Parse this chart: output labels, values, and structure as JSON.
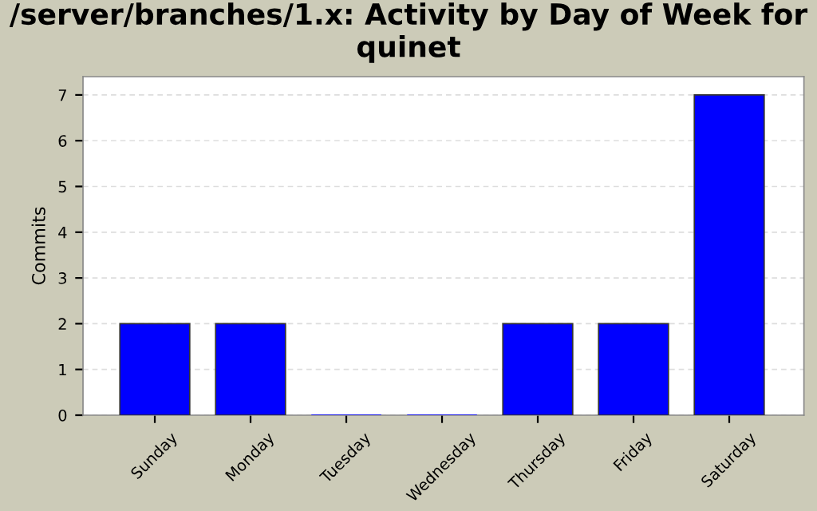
{
  "chart_data": {
    "type": "bar",
    "title": "/server/branches/1.x: Activity by Day of Week for quinet",
    "ylabel": "Commits",
    "categories": [
      "Sunday",
      "Monday",
      "Tuesday",
      "Wednesday",
      "Thursday",
      "Friday",
      "Saturday"
    ],
    "values": [
      2,
      2,
      0,
      0,
      2,
      2,
      7
    ],
    "color": "#0000ff",
    "ylim": [
      0,
      7.4
    ],
    "yticks": [
      0,
      1,
      2,
      3,
      4,
      5,
      6,
      7
    ],
    "grid": "y",
    "legend": false
  }
}
